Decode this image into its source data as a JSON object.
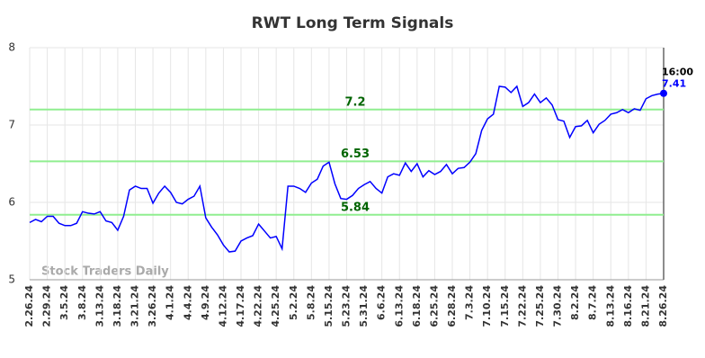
{
  "chart_data": {
    "type": "line",
    "title": "RWT Long Term Signals",
    "categories": [
      "2.26.24",
      null,
      null,
      "2.29.24",
      null,
      null,
      "3.5.24",
      null,
      null,
      "3.8.24",
      null,
      null,
      "3.13.24",
      null,
      null,
      "3.18.24",
      null,
      null,
      "3.21.24",
      null,
      null,
      "3.26.24",
      null,
      null,
      "4.1.24",
      null,
      null,
      "4.4.24",
      null,
      null,
      "4.9.24",
      null,
      null,
      "4.12.24",
      null,
      null,
      "4.17.24",
      null,
      null,
      "4.22.24",
      null,
      null,
      "4.25.24",
      null,
      null,
      "5.2.24",
      null,
      null,
      "5.8.24",
      null,
      null,
      "5.15.24",
      null,
      null,
      "5.23.24",
      null,
      null,
      "5.31.24",
      null,
      null,
      "6.6.24",
      null,
      null,
      "6.13.24",
      null,
      null,
      "6.18.24",
      null,
      null,
      "6.25.24",
      null,
      null,
      "6.28.24",
      null,
      null,
      "7.3.24",
      null,
      null,
      "7.10.24",
      null,
      null,
      "7.15.24",
      null,
      null,
      "7.22.24",
      null,
      null,
      "7.25.24",
      null,
      null,
      "7.30.24",
      null,
      null,
      "8.2.24",
      null,
      null,
      "8.7.24",
      null,
      null,
      "8.13.24",
      null,
      null,
      "8.16.24",
      null,
      null,
      "8.21.24",
      null,
      null,
      "8.26.24"
    ],
    "values": [
      5.74,
      5.78,
      5.75,
      5.82,
      5.82,
      5.73,
      5.7,
      5.7,
      5.73,
      5.88,
      5.86,
      5.85,
      5.88,
      5.76,
      5.74,
      5.64,
      5.82,
      6.16,
      6.21,
      6.18,
      6.18,
      5.99,
      6.12,
      6.21,
      6.13,
      6.0,
      5.98,
      6.04,
      6.08,
      6.21,
      5.8,
      5.68,
      5.58,
      5.45,
      5.36,
      5.37,
      5.5,
      5.54,
      5.57,
      5.72,
      5.63,
      5.54,
      5.56,
      5.4,
      6.21,
      6.21,
      6.18,
      6.13,
      6.25,
      6.3,
      6.47,
      6.52,
      6.24,
      6.05,
      6.04,
      6.09,
      6.18,
      6.23,
      6.27,
      6.18,
      6.12,
      6.33,
      6.37,
      6.35,
      6.51,
      6.4,
      6.5,
      6.33,
      6.41,
      6.36,
      6.4,
      6.49,
      6.37,
      6.44,
      6.45,
      6.52,
      6.63,
      6.93,
      7.08,
      7.14,
      7.5,
      7.49,
      7.42,
      7.5,
      7.24,
      7.29,
      7.4,
      7.29,
      7.35,
      7.26,
      7.07,
      7.05,
      6.84,
      6.98,
      6.99,
      7.06,
      6.9,
      7.01,
      7.06,
      7.14,
      7.16,
      7.2,
      7.16,
      7.21,
      7.19,
      7.34,
      7.38,
      7.4,
      7.41
    ],
    "color": "#0000ff",
    "ylim": [
      5,
      8
    ],
    "yticks": [
      5,
      6,
      7,
      8
    ],
    "grid": true,
    "hlines": [
      {
        "value": 7.2,
        "color": "#90ee90"
      },
      {
        "value": 6.53,
        "color": "#90ee90"
      },
      {
        "value": 5.84,
        "color": "#90ee90"
      }
    ],
    "last_time": "16:00",
    "watermark": "Stock Traders Daily"
  }
}
